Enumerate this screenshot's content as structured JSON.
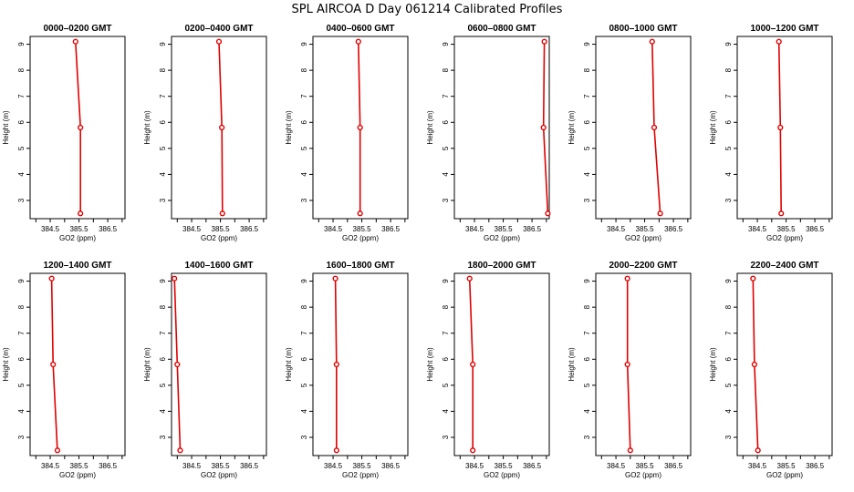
{
  "page": {
    "title": "SPL AIRCOA D  Day 061214  Calibrated Profiles"
  },
  "chart_data": [
    {
      "type": "line",
      "title": "0000–0200 GMT",
      "xlabel": "GO2 (ppm)",
      "ylabel": "Height (m)",
      "xlim": [
        383.8,
        387.1
      ],
      "ylim": [
        2.3,
        9.3
      ],
      "xticks": [
        "384.5",
        "385.5",
        "386.5"
      ],
      "yticks": [
        "3",
        "4",
        "5",
        "6",
        "7",
        "8",
        "9"
      ],
      "grid": false,
      "series": [
        {
          "color": "#e00000",
          "points": [
            {
              "x": 385.38,
              "y": 9.1
            },
            {
              "x": 385.55,
              "y": 5.8
            },
            {
              "x": 385.55,
              "y": 2.5
            }
          ]
        }
      ]
    },
    {
      "type": "line",
      "title": "0200–0400 GMT",
      "xlabel": "GO2 (ppm)",
      "ylabel": "Height (m)",
      "xlim": [
        383.8,
        387.1
      ],
      "ylim": [
        2.3,
        9.3
      ],
      "xticks": [
        "384.5",
        "385.5",
        "386.5"
      ],
      "yticks": [
        "3",
        "4",
        "5",
        "6",
        "7",
        "8",
        "9"
      ],
      "grid": false,
      "series": [
        {
          "color": "#e00000",
          "points": [
            {
              "x": 385.45,
              "y": 9.1
            },
            {
              "x": 385.55,
              "y": 5.8
            },
            {
              "x": 385.57,
              "y": 2.5
            }
          ]
        }
      ]
    },
    {
      "type": "line",
      "title": "0400–0600 GMT",
      "xlabel": "GO2 (ppm)",
      "ylabel": "Height (m)",
      "xlim": [
        383.8,
        387.1
      ],
      "ylim": [
        2.3,
        9.3
      ],
      "xticks": [
        "384.5",
        "385.5",
        "386.5"
      ],
      "yticks": [
        "3",
        "4",
        "5",
        "6",
        "7",
        "8",
        "9"
      ],
      "grid": false,
      "series": [
        {
          "color": "#e00000",
          "points": [
            {
              "x": 385.38,
              "y": 9.1
            },
            {
              "x": 385.44,
              "y": 5.8
            },
            {
              "x": 385.44,
              "y": 2.5
            }
          ]
        }
      ]
    },
    {
      "type": "line",
      "title": "0600–0800 GMT",
      "xlabel": "GO2 (ppm)",
      "ylabel": "Height (m)",
      "xlim": [
        383.8,
        387.1
      ],
      "ylim": [
        2.3,
        9.3
      ],
      "xticks": [
        "384.5",
        "385.5",
        "386.5"
      ],
      "yticks": [
        "3",
        "4",
        "5",
        "6",
        "7",
        "8",
        "9"
      ],
      "grid": false,
      "series": [
        {
          "color": "#e00000",
          "points": [
            {
              "x": 386.93,
              "y": 9.1
            },
            {
              "x": 386.9,
              "y": 5.8
            },
            {
              "x": 387.05,
              "y": 2.5
            }
          ]
        }
      ]
    },
    {
      "type": "line",
      "title": "0800–1000 GMT",
      "xlabel": "GO2 (ppm)",
      "ylabel": "Height (m)",
      "xlim": [
        383.8,
        387.1
      ],
      "ylim": [
        2.3,
        9.3
      ],
      "xticks": [
        "384.5",
        "385.5",
        "386.5"
      ],
      "yticks": [
        "3",
        "4",
        "5",
        "6",
        "7",
        "8",
        "9"
      ],
      "grid": false,
      "series": [
        {
          "color": "#e00000",
          "points": [
            {
              "x": 385.76,
              "y": 9.1
            },
            {
              "x": 385.83,
              "y": 5.8
            },
            {
              "x": 386.04,
              "y": 2.5
            }
          ]
        }
      ]
    },
    {
      "type": "line",
      "title": "1000–1200 GMT",
      "xlabel": "GO2 (ppm)",
      "ylabel": "Height (m)",
      "xlim": [
        383.8,
        387.1
      ],
      "ylim": [
        2.3,
        9.3
      ],
      "xticks": [
        "384.5",
        "385.5",
        "386.5"
      ],
      "yticks": [
        "3",
        "4",
        "5",
        "6",
        "7",
        "8",
        "9"
      ],
      "grid": false,
      "series": [
        {
          "color": "#e00000",
          "points": [
            {
              "x": 385.25,
              "y": 9.1
            },
            {
              "x": 385.3,
              "y": 5.8
            },
            {
              "x": 385.33,
              "y": 2.5
            }
          ]
        }
      ]
    },
    {
      "type": "line",
      "title": "1200–1400 GMT",
      "xlabel": "GO2 (ppm)",
      "ylabel": "Height (m)",
      "xlim": [
        383.8,
        387.1
      ],
      "ylim": [
        2.3,
        9.3
      ],
      "xticks": [
        "384.5",
        "385.5",
        "386.5"
      ],
      "yticks": [
        "3",
        "4",
        "5",
        "6",
        "7",
        "8",
        "9"
      ],
      "grid": false,
      "series": [
        {
          "color": "#e00000",
          "points": [
            {
              "x": 384.55,
              "y": 9.1
            },
            {
              "x": 384.6,
              "y": 5.8
            },
            {
              "x": 384.75,
              "y": 2.5
            }
          ]
        }
      ]
    },
    {
      "type": "line",
      "title": "1400–1600 GMT",
      "xlabel": "GO2 (ppm)",
      "ylabel": "Height (m)",
      "xlim": [
        383.8,
        387.1
      ],
      "ylim": [
        2.3,
        9.3
      ],
      "xticks": [
        "384.5",
        "385.5",
        "386.5"
      ],
      "yticks": [
        "3",
        "4",
        "5",
        "6",
        "7",
        "8",
        "9"
      ],
      "grid": false,
      "series": [
        {
          "color": "#e00000",
          "points": [
            {
              "x": 383.9,
              "y": 9.1
            },
            {
              "x": 384.0,
              "y": 5.8
            },
            {
              "x": 384.1,
              "y": 2.5
            }
          ]
        }
      ]
    },
    {
      "type": "line",
      "title": "1600–1800 GMT",
      "xlabel": "GO2 (ppm)",
      "ylabel": "Height (m)",
      "xlim": [
        383.8,
        387.1
      ],
      "ylim": [
        2.3,
        9.3
      ],
      "xticks": [
        "384.5",
        "385.5",
        "386.5"
      ],
      "yticks": [
        "3",
        "4",
        "5",
        "6",
        "7",
        "8",
        "9"
      ],
      "grid": false,
      "series": [
        {
          "color": "#e00000",
          "points": [
            {
              "x": 384.58,
              "y": 9.1
            },
            {
              "x": 384.62,
              "y": 5.8
            },
            {
              "x": 384.62,
              "y": 2.5
            }
          ]
        }
      ]
    },
    {
      "type": "line",
      "title": "1800–2000 GMT",
      "xlabel": "GO2 (ppm)",
      "ylabel": "Height (m)",
      "xlim": [
        383.8,
        387.1
      ],
      "ylim": [
        2.3,
        9.3
      ],
      "xticks": [
        "384.5",
        "385.5",
        "386.5"
      ],
      "yticks": [
        "3",
        "4",
        "5",
        "6",
        "7",
        "8",
        "9"
      ],
      "grid": false,
      "series": [
        {
          "color": "#e00000",
          "points": [
            {
              "x": 384.33,
              "y": 9.1
            },
            {
              "x": 384.44,
              "y": 5.8
            },
            {
              "x": 384.44,
              "y": 2.5
            }
          ]
        }
      ]
    },
    {
      "type": "line",
      "title": "2000–2200 GMT",
      "xlabel": "GO2 (ppm)",
      "ylabel": "Height (m)",
      "xlim": [
        383.8,
        387.1
      ],
      "ylim": [
        2.3,
        9.3
      ],
      "xticks": [
        "384.5",
        "385.5",
        "386.5"
      ],
      "yticks": [
        "3",
        "4",
        "5",
        "6",
        "7",
        "8",
        "9"
      ],
      "grid": false,
      "series": [
        {
          "color": "#e00000",
          "points": [
            {
              "x": 384.9,
              "y": 9.1
            },
            {
              "x": 384.9,
              "y": 5.8
            },
            {
              "x": 385.0,
              "y": 2.5
            }
          ]
        }
      ]
    },
    {
      "type": "line",
      "title": "2200–2400 GMT",
      "xlabel": "GO2 (ppm)",
      "ylabel": "Height (m)",
      "xlim": [
        383.8,
        387.1
      ],
      "ylim": [
        2.3,
        9.3
      ],
      "xticks": [
        "384.5",
        "385.5",
        "386.5"
      ],
      "yticks": [
        "3",
        "4",
        "5",
        "6",
        "7",
        "8",
        "9"
      ],
      "grid": false,
      "series": [
        {
          "color": "#e00000",
          "points": [
            {
              "x": 384.35,
              "y": 9.1
            },
            {
              "x": 384.4,
              "y": 5.8
            },
            {
              "x": 384.52,
              "y": 2.5
            }
          ]
        }
      ]
    }
  ]
}
